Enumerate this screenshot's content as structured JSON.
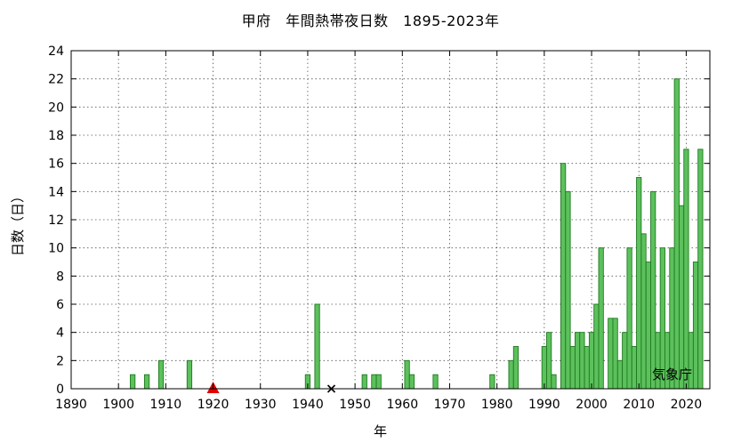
{
  "chart_data": {
    "type": "bar",
    "title": "甲府　年間熱帯夜日数　1895-2023年",
    "xlabel": "年",
    "ylabel": "日数（日）",
    "xlim": [
      1890,
      2025
    ],
    "ylim": [
      0,
      24
    ],
    "xticks": [
      1890,
      1900,
      1910,
      1920,
      1930,
      1940,
      1950,
      1960,
      1970,
      1980,
      1990,
      2000,
      2010,
      2020
    ],
    "yticks": [
      0,
      2,
      4,
      6,
      8,
      10,
      12,
      14,
      16,
      18,
      20,
      22,
      24
    ],
    "grid": true,
    "bar_color": "#5cc15c",
    "bar_edge_color": "#1f7a1f",
    "years": [
      1903,
      1906,
      1909,
      1915,
      1940,
      1942,
      1952,
      1954,
      1955,
      1961,
      1962,
      1967,
      1979,
      1983,
      1984,
      1990,
      1991,
      1992,
      1994,
      1995,
      1996,
      1997,
      1998,
      1999,
      2000,
      2001,
      2002,
      2004,
      2005,
      2006,
      2007,
      2008,
      2009,
      2010,
      2011,
      2012,
      2013,
      2014,
      2015,
      2016,
      2017,
      2018,
      2019,
      2020,
      2021,
      2022,
      2023
    ],
    "values": [
      1,
      1,
      2,
      2,
      1,
      6,
      1,
      1,
      1,
      2,
      1,
      1,
      1,
      2,
      3,
      3,
      4,
      1,
      16,
      14,
      3,
      4,
      4,
      3,
      4,
      6,
      10,
      5,
      5,
      2,
      4,
      10,
      3,
      15,
      11,
      9,
      14,
      4,
      10,
      4,
      10,
      22,
      13,
      17,
      4,
      9,
      17
    ],
    "markers": [
      {
        "year": 1920,
        "value": 0,
        "symbol": "triangle",
        "color": "#e00000"
      },
      {
        "year": 1945,
        "value": 0,
        "symbol": "cross",
        "color": "#000000"
      }
    ],
    "credit": "気象庁"
  }
}
